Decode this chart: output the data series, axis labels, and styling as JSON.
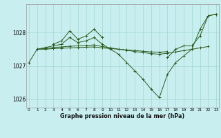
{
  "title": "Graphe pression niveau de la mer (hPa)",
  "bg_color": "#c8eef0",
  "grid_color": "#a0d8d0",
  "line_color": "#2d5a1e",
  "marker": "+",
  "hours": [
    0,
    1,
    2,
    3,
    4,
    5,
    6,
    7,
    8,
    9,
    10,
    11,
    12,
    13,
    14,
    15,
    16,
    17,
    18,
    19,
    20,
    21,
    22,
    23
  ],
  "series": [
    [
      1027.1,
      1027.5,
      1027.55,
      1027.6,
      1027.65,
      1027.85,
      1027.7,
      1027.75,
      1027.85,
      1027.65,
      1027.5,
      1027.35,
      1027.1,
      1026.85,
      1026.6,
      1026.3,
      1026.05,
      1026.75,
      1027.1,
      1027.3,
      1027.5,
      1028.1,
      1028.5,
      1028.55
    ],
    [
      null,
      null,
      null,
      1027.65,
      1027.75,
      1028.05,
      1027.8,
      1027.9,
      1028.1,
      1027.85,
      null,
      null,
      null,
      null,
      null,
      null,
      null,
      null,
      null,
      null,
      null,
      null,
      null,
      null
    ],
    [
      null,
      null,
      null,
      null,
      null,
      null,
      null,
      null,
      null,
      null,
      null,
      null,
      null,
      null,
      null,
      null,
      null,
      1027.25,
      1027.5,
      1027.6,
      1027.6,
      1027.9,
      1028.5,
      1028.55
    ],
    [
      null,
      1027.5,
      1027.52,
      1027.55,
      1027.57,
      1027.59,
      1027.6,
      1027.61,
      1027.63,
      1027.58,
      1027.54,
      1027.5,
      1027.47,
      1027.43,
      1027.4,
      1027.37,
      1027.35,
      1027.38,
      1027.42,
      1027.46,
      1027.5,
      1027.54,
      1027.58,
      null
    ],
    [
      null,
      1027.5,
      1027.5,
      1027.52,
      1027.53,
      1027.54,
      1027.55,
      1027.56,
      1027.57,
      1027.54,
      1027.52,
      1027.5,
      1027.48,
      1027.46,
      1027.44,
      1027.42,
      1027.41,
      1027.43,
      null,
      null,
      null,
      null,
      null,
      null
    ]
  ],
  "yticks": [
    1026,
    1027,
    1028
  ],
  "ylim": [
    1025.75,
    1028.85
  ],
  "xlim": [
    -0.3,
    23.3
  ],
  "figwidth": 3.2,
  "figheight": 2.0,
  "dpi": 100
}
